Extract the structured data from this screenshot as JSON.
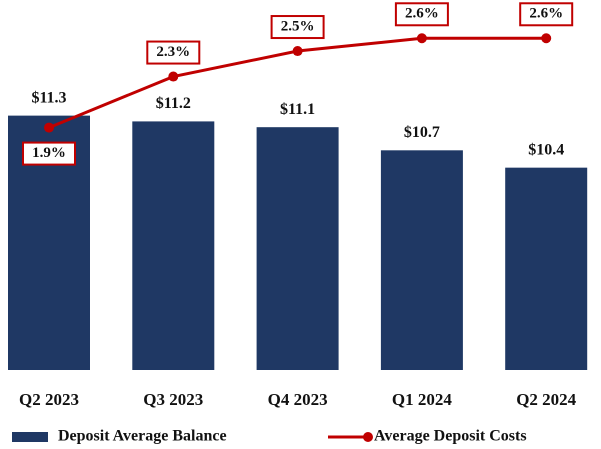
{
  "chart_data": {
    "type": "bar",
    "categories": [
      "Q2 2023",
      "Q3 2023",
      "Q4 2023",
      "Q1 2024",
      "Q2 2024"
    ],
    "series": [
      {
        "name": "Deposit Average Balance",
        "type": "bar",
        "color": "#1f3864",
        "values": [
          11.3,
          11.2,
          11.1,
          10.7,
          10.4
        ],
        "value_labels": [
          "$11.3",
          "$11.2",
          "$11.1",
          "$10.7",
          "$10.4"
        ]
      },
      {
        "name": "Average Deposit Costs",
        "type": "line",
        "axis": "y2",
        "color": "#c00000",
        "values": [
          1.9,
          2.3,
          2.5,
          2.6,
          2.6
        ],
        "value_labels": [
          "1.9%",
          "2.3%",
          "2.5%",
          "2.6%",
          "2.6%"
        ]
      }
    ],
    "ylim": [
      6.9,
      13.3
    ],
    "y2lim": [
      0,
      2.9
    ],
    "legend": "bottom"
  }
}
